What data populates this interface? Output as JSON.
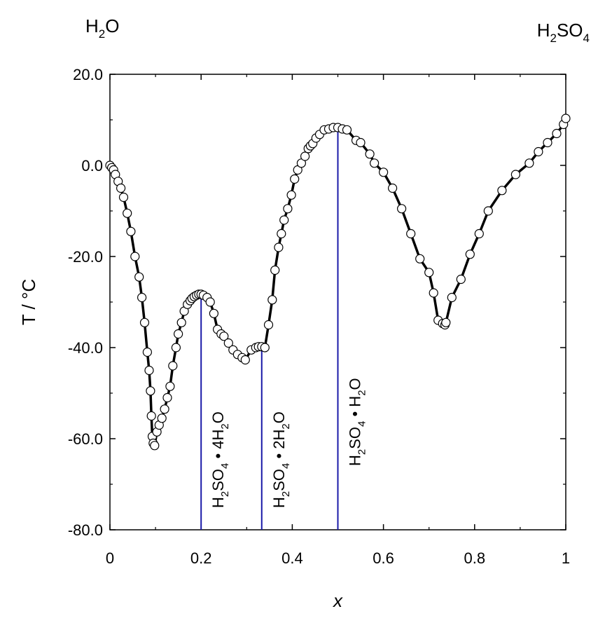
{
  "chart_data": {
    "type": "line",
    "xlabel": "x",
    "ylabel": "T / °C",
    "xlim": [
      0,
      1
    ],
    "ylim": [
      -80,
      20
    ],
    "x_ticks": [
      "0",
      "0.2",
      "0.4",
      "0.6",
      "0.8",
      "1"
    ],
    "y_ticks": [
      "20.0",
      "0.0",
      "-20.0",
      "-40.0",
      "-60.0",
      "-80.0"
    ],
    "grid": false,
    "corner_labels": {
      "left": {
        "base": "H",
        "sub1": "2",
        "rest": "O"
      },
      "right": {
        "base": "H",
        "sub1": "2",
        "mid": "SO",
        "sub2": "4"
      }
    },
    "compound_lines": [
      {
        "x": 0.2,
        "name": "H2SO4·4H2O",
        "parts": [
          [
            "H",
            ""
          ],
          [
            "2",
            "sub"
          ],
          [
            "SO",
            ""
          ],
          [
            "4",
            "sub"
          ],
          [
            " • 4H",
            ""
          ],
          [
            "2",
            "sub"
          ],
          [
            "O",
            ""
          ]
        ]
      },
      {
        "x": 0.333,
        "name": "H2SO4·2H2O",
        "parts": [
          [
            "H",
            ""
          ],
          [
            "2",
            "sub"
          ],
          [
            "SO",
            ""
          ],
          [
            "4",
            "sub"
          ],
          [
            " • 2H",
            ""
          ],
          [
            "2",
            "sub"
          ],
          [
            "O",
            ""
          ]
        ]
      },
      {
        "x": 0.5,
        "name": "H2SO4·H2O",
        "parts": [
          [
            "H",
            ""
          ],
          [
            "2",
            "sub"
          ],
          [
            "SO",
            ""
          ],
          [
            "4",
            "sub"
          ],
          [
            " • H",
            ""
          ],
          [
            "2",
            "sub"
          ],
          [
            "O",
            ""
          ]
        ]
      }
    ],
    "colors": {
      "curve": "#000000",
      "marker_fill": "#ffffff",
      "vertical_lines": "#1a1aa8"
    },
    "series": [
      {
        "x": [
          0.0,
          0.004,
          0.008,
          0.012,
          0.018,
          0.024,
          0.03,
          0.038,
          0.046,
          0.055,
          0.064,
          0.07,
          0.076,
          0.082,
          0.086,
          0.089,
          0.091,
          0.093,
          0.095,
          0.098,
          0.103,
          0.108,
          0.114,
          0.12,
          0.126,
          0.132,
          0.138,
          0.145,
          0.15,
          0.157,
          0.163,
          0.17,
          0.176,
          0.18,
          0.185,
          0.19,
          0.195,
          0.2,
          0.205,
          0.213,
          0.22,
          0.228,
          0.236,
          0.244,
          0.25,
          0.26,
          0.27,
          0.28,
          0.29,
          0.297,
          0.31,
          0.32,
          0.326,
          0.333,
          0.34,
          0.348,
          0.356,
          0.362,
          0.37,
          0.376,
          0.382,
          0.39,
          0.398,
          0.405,
          0.412,
          0.42,
          0.428,
          0.435,
          0.44,
          0.445,
          0.452,
          0.46,
          0.47,
          0.48,
          0.49,
          0.5,
          0.51,
          0.52,
          0.54,
          0.55,
          0.57,
          0.58,
          0.6,
          0.62,
          0.64,
          0.66,
          0.68,
          0.7,
          0.71,
          0.72,
          0.73,
          0.735,
          0.737,
          0.75,
          0.77,
          0.79,
          0.81,
          0.83,
          0.86,
          0.89,
          0.92,
          0.94,
          0.96,
          0.98,
          0.995,
          1.0
        ],
        "y": [
          0.0,
          -0.5,
          -1.0,
          -2.0,
          -3.5,
          -5.0,
          -7.0,
          -10.5,
          -14.5,
          -20.0,
          -24.5,
          -29.0,
          -34.5,
          -41.0,
          -45.0,
          -49.5,
          -55.0,
          -59.5,
          -61.0,
          -61.5,
          -58.5,
          -57.0,
          -55.5,
          -53.5,
          -51.0,
          -48.5,
          -44.0,
          -40.0,
          -37.0,
          -34.5,
          -32.0,
          -30.5,
          -29.7,
          -29.2,
          -28.8,
          -28.5,
          -28.3,
          -28.3,
          -28.5,
          -29.0,
          -30.0,
          -32.5,
          -36.0,
          -37.0,
          -37.5,
          -39.0,
          -40.5,
          -41.5,
          -42.2,
          -42.7,
          -40.5,
          -40.0,
          -39.8,
          -39.8,
          -40.0,
          -35.0,
          -29.5,
          -23.0,
          -18.0,
          -15.0,
          -12.0,
          -9.5,
          -6.5,
          -3.0,
          -1.0,
          0.5,
          2.0,
          3.7,
          4.3,
          4.8,
          6.0,
          6.8,
          7.8,
          8.0,
          8.3,
          8.3,
          8.0,
          7.8,
          5.5,
          5.0,
          2.5,
          0.5,
          -1.5,
          -5.0,
          -9.5,
          -15.0,
          -20.5,
          -23.5,
          -28.0,
          -34.0,
          -34.7,
          -35.0,
          -34.5,
          -29.0,
          -25.0,
          -19.5,
          -15.0,
          -10.0,
          -5.5,
          -2.0,
          0.5,
          3.0,
          5.0,
          7.0,
          9.0,
          10.3
        ]
      }
    ]
  }
}
